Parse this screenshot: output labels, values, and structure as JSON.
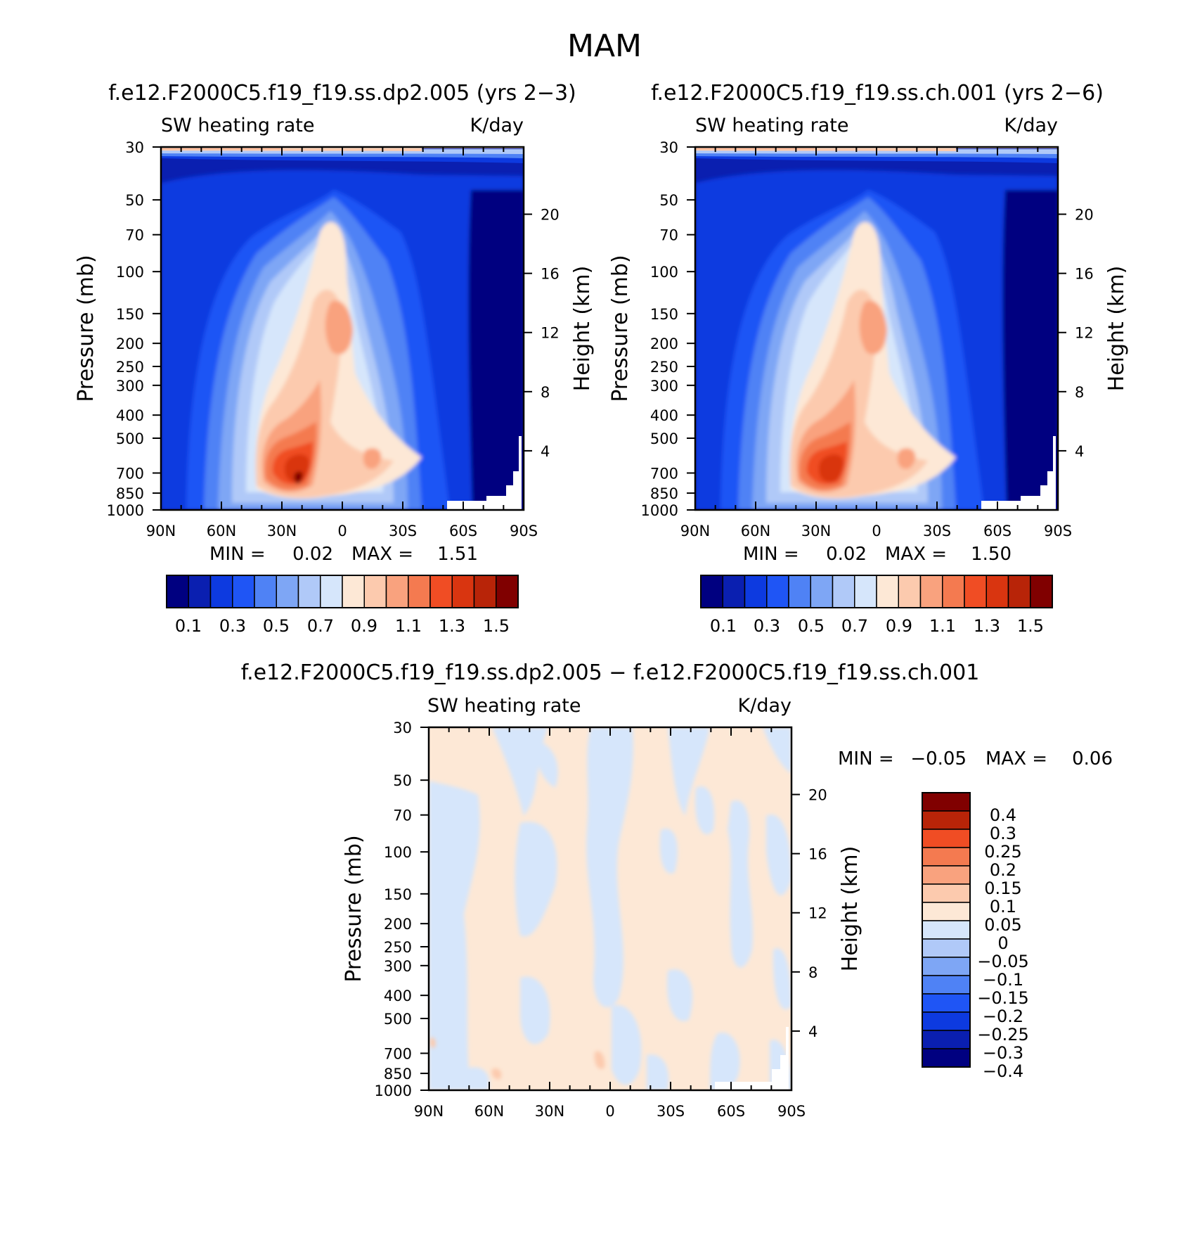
{
  "figure_title": "MAM",
  "palette": {
    "main_fills": [
      "#000080",
      "#0a1fb0",
      "#0d3ae0",
      "#1f55f5",
      "#4f82f5",
      "#7ea6f5",
      "#b0c9f8",
      "#d6e6fb",
      "#fde8d6",
      "#fccaae",
      "#f9a27e",
      "#f47a50",
      "#f04d24",
      "#d93510",
      "#b82408",
      "#800000"
    ],
    "diff_fills": [
      "#000080",
      "#0a1fb0",
      "#0d3ae0",
      "#1f55f5",
      "#4f82f5",
      "#7ea6f5",
      "#b0c9f8",
      "#d6e6fb",
      "#fde8d6",
      "#fccaae",
      "#f9a27e",
      "#f47a50",
      "#f04d24",
      "#b82408",
      "#800000"
    ]
  },
  "chart_data": [
    {
      "type": "heatmap",
      "title": "f.e12.F2000C5.f19_f19.ss.dp2.005 (yrs 2−3)",
      "left_label": "SW heating rate",
      "right_label": "K/day",
      "ylabel": "Pressure (mb)",
      "y2label": "Height (km)",
      "xticks": [
        "90N",
        "60N",
        "30N",
        "0",
        "30S",
        "60S",
        "90S"
      ],
      "yticks": [
        "30",
        "50",
        "70",
        "100",
        "150",
        "200",
        "250",
        "300",
        "400",
        "500",
        "700",
        "850",
        "1000"
      ],
      "y2ticks": [
        "20",
        "16",
        "12",
        "8",
        "4"
      ],
      "min_label": "MIN =",
      "min_value": "0.02",
      "max_label": "MAX =",
      "max_value": "1.51",
      "colorbar_labels": [
        "0.1",
        "0.3",
        "0.5",
        "0.7",
        "0.9",
        "1.1",
        "1.3",
        "1.5"
      ]
    },
    {
      "type": "heatmap",
      "title": "f.e12.F2000C5.f19_f19.ss.ch.001 (yrs 2−6)",
      "left_label": "SW heating rate",
      "right_label": "K/day",
      "ylabel": "Pressure (mb)",
      "y2label": "Height (km)",
      "xticks": [
        "90N",
        "60N",
        "30N",
        "0",
        "30S",
        "60S",
        "90S"
      ],
      "yticks": [
        "30",
        "50",
        "70",
        "100",
        "150",
        "200",
        "250",
        "300",
        "400",
        "500",
        "700",
        "850",
        "1000"
      ],
      "y2ticks": [
        "20",
        "16",
        "12",
        "8",
        "4"
      ],
      "min_label": "MIN =",
      "min_value": "0.02",
      "max_label": "MAX =",
      "max_value": "1.50",
      "colorbar_labels": [
        "0.1",
        "0.3",
        "0.5",
        "0.7",
        "0.9",
        "1.1",
        "1.3",
        "1.5"
      ]
    },
    {
      "type": "heatmap",
      "title": "f.e12.F2000C5.f19_f19.ss.dp2.005 − f.e12.F2000C5.f19_f19.ss.ch.001",
      "left_label": "SW heating rate",
      "right_label": "K/day",
      "ylabel": "Pressure (mb)",
      "y2label": "Height (km)",
      "xticks": [
        "90N",
        "60N",
        "30N",
        "0",
        "30S",
        "60S",
        "90S"
      ],
      "yticks": [
        "30",
        "50",
        "70",
        "100",
        "150",
        "200",
        "250",
        "300",
        "400",
        "500",
        "700",
        "850",
        "1000"
      ],
      "y2ticks": [
        "20",
        "16",
        "12",
        "8",
        "4"
      ],
      "min_label": "MIN =",
      "min_value": "−0.05",
      "max_label": "MAX =",
      "max_value": "0.06",
      "colorbar_labels": [
        "0.4",
        "0.3",
        "0.25",
        "0.2",
        "0.15",
        "0.1",
        "0.05",
        "0",
        "−0.05",
        "−0.1",
        "−0.15",
        "−0.2",
        "−0.25",
        "−0.3",
        "−0.4"
      ]
    }
  ]
}
